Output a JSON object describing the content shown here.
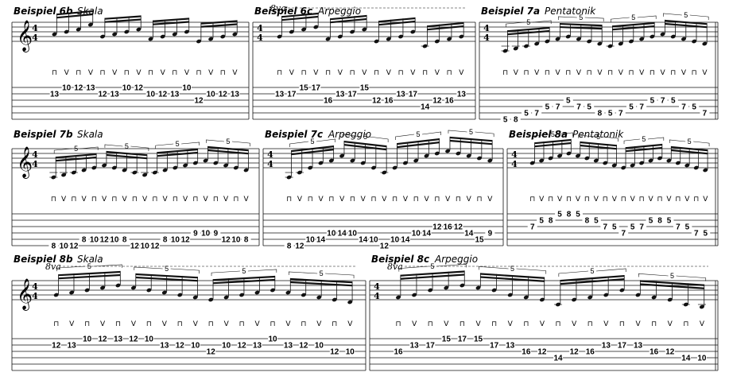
{
  "rows": [
    {
      "systems": [
        {
          "title": "Beispiel 6b",
          "subtitle": "Skala",
          "ottava": "",
          "notes": [
            {
              "s": 2,
              "f": "13",
              "d": -1
            },
            {
              "s": 1,
              "f": "10",
              "d": 0
            },
            {
              "s": 1,
              "f": "12",
              "d": 1
            },
            {
              "s": 1,
              "f": "13",
              "d": 3
            },
            {
              "s": 2,
              "f": "12",
              "d": -2
            },
            {
              "s": 2,
              "f": "13",
              "d": -1
            },
            {
              "s": 1,
              "f": "10",
              "d": 0
            },
            {
              "s": 1,
              "f": "12",
              "d": 1
            },
            {
              "s": 2,
              "f": "10",
              "d": -3
            },
            {
              "s": 2,
              "f": "12",
              "d": -2
            },
            {
              "s": 2,
              "f": "13",
              "d": -1
            },
            {
              "s": 1,
              "f": "10",
              "d": 0
            },
            {
              "s": 3,
              "f": "12",
              "d": -4
            },
            {
              "s": 2,
              "f": "10",
              "d": -3
            },
            {
              "s": 2,
              "f": "12",
              "d": -2
            },
            {
              "s": 2,
              "f": "13",
              "d": -1
            }
          ],
          "strokes": [
            "⊓",
            "V",
            "⊓",
            "V",
            "⊓",
            "V",
            "⊓",
            "V",
            "⊓",
            "V",
            "⊓",
            "V",
            "⊓",
            "V",
            "⊓",
            "V"
          ],
          "tuplets": []
        },
        {
          "title": "Beispiel 6c",
          "subtitle": "Arpeggio",
          "ottava": "8va",
          "notes": [
            {
              "s": 2,
              "f": "13",
              "d": -2
            },
            {
              "s": 2,
              "f": "17",
              "d": 0
            },
            {
              "s": 1,
              "f": "15",
              "d": 1
            },
            {
              "s": 1,
              "f": "17",
              "d": 2
            },
            {
              "s": 3,
              "f": "16",
              "d": -3
            },
            {
              "s": 2,
              "f": "13",
              "d": -2
            },
            {
              "s": 2,
              "f": "17",
              "d": 0
            },
            {
              "s": 1,
              "f": "15",
              "d": 1
            },
            {
              "s": 3,
              "f": "12",
              "d": -4
            },
            {
              "s": 3,
              "f": "16",
              "d": -3
            },
            {
              "s": 2,
              "f": "13",
              "d": -2
            },
            {
              "s": 2,
              "f": "17",
              "d": 0
            },
            {
              "s": 4,
              "f": "14",
              "d": -6
            },
            {
              "s": 3,
              "f": "12",
              "d": -4
            },
            {
              "s": 3,
              "f": "16",
              "d": -3
            },
            {
              "s": 2,
              "f": "13",
              "d": -2
            }
          ],
          "strokes": [
            "⊓",
            "V",
            "⊓",
            "V",
            "⊓",
            "V",
            "⊓",
            "V",
            "⊓",
            "V",
            "⊓",
            "V",
            "⊓",
            "V",
            "⊓",
            "V"
          ],
          "tuplets": []
        },
        {
          "title": "Beispiel 7a",
          "subtitle": "Pentatonik",
          "ottava": "",
          "notes": [
            {
              "s": 6,
              "f": "5",
              "d": -8
            },
            {
              "s": 6,
              "f": "8",
              "d": -7
            },
            {
              "s": 5,
              "f": "5",
              "d": -6
            },
            {
              "s": 5,
              "f": "7",
              "d": -5
            },
            {
              "s": 4,
              "f": "5",
              "d": -4
            },
            {
              "s": 4,
              "f": "7",
              "d": -3
            },
            {
              "s": 3,
              "f": "5",
              "d": -2
            },
            {
              "s": 4,
              "f": "7",
              "d": -3
            },
            {
              "s": 4,
              "f": "5",
              "d": -4
            },
            {
              "s": 5,
              "f": "8",
              "d": -5
            },
            {
              "s": 5,
              "f": "5",
              "d": -6
            },
            {
              "s": 5,
              "f": "7",
              "d": -5
            },
            {
              "s": 4,
              "f": "5",
              "d": -4
            },
            {
              "s": 4,
              "f": "7",
              "d": -3
            },
            {
              "s": 3,
              "f": "5",
              "d": -2
            },
            {
              "s": 3,
              "f": "7",
              "d": -1
            },
            {
              "s": 3,
              "f": "5",
              "d": -2
            },
            {
              "s": 4,
              "f": "7",
              "d": -3
            },
            {
              "s": 4,
              "f": "5",
              "d": -4
            },
            {
              "s": 5,
              "f": "7",
              "d": -5
            }
          ],
          "strokes": [
            "⊓",
            "V",
            "⊓",
            "V",
            "⊓",
            "V",
            "⊓",
            "V",
            "⊓",
            "V",
            "⊓",
            "V",
            "⊓",
            "V",
            "⊓",
            "V",
            "⊓",
            "V",
            "⊓",
            "V"
          ],
          "tuplets": [
            "5",
            "5",
            "5",
            "5"
          ]
        }
      ]
    },
    {
      "systems": [
        {
          "title": "Beispiel 7b",
          "subtitle": "Skala",
          "ottava": "",
          "notes": [
            {
              "s": 6,
              "f": "8",
              "d": -8
            },
            {
              "s": 6,
              "f": "10",
              "d": -7
            },
            {
              "s": 6,
              "f": "12",
              "d": -6
            },
            {
              "s": 5,
              "f": "8",
              "d": -5
            },
            {
              "s": 5,
              "f": "10",
              "d": -4
            },
            {
              "s": 5,
              "f": "12",
              "d": -3
            },
            {
              "s": 5,
              "f": "10",
              "d": -4
            },
            {
              "s": 5,
              "f": "8",
              "d": -5
            },
            {
              "s": 6,
              "f": "12",
              "d": -6
            },
            {
              "s": 6,
              "f": "10",
              "d": -7
            },
            {
              "s": 6,
              "f": "12",
              "d": -6
            },
            {
              "s": 5,
              "f": "8",
              "d": -5
            },
            {
              "s": 5,
              "f": "10",
              "d": -4
            },
            {
              "s": 5,
              "f": "12",
              "d": -3
            },
            {
              "s": 4,
              "f": "9",
              "d": -2
            },
            {
              "s": 4,
              "f": "10",
              "d": -1
            },
            {
              "s": 4,
              "f": "9",
              "d": -2
            },
            {
              "s": 5,
              "f": "12",
              "d": -3
            },
            {
              "s": 5,
              "f": "10",
              "d": -4
            },
            {
              "s": 5,
              "f": "8",
              "d": -5
            }
          ],
          "strokes": [
            "⊓",
            "V",
            "⊓",
            "V",
            "⊓",
            "V",
            "⊓",
            "V",
            "⊓",
            "V",
            "⊓",
            "V",
            "⊓",
            "V",
            "⊓",
            "V",
            "⊓",
            "V",
            "⊓",
            "V"
          ],
          "tuplets": [
            "5",
            "5",
            "5",
            "5"
          ]
        },
        {
          "title": "Beispiel 7c",
          "subtitle": "Arpeggio",
          "ottava": "",
          "notes": [
            {
              "s": 6,
              "f": "8",
              "d": -8
            },
            {
              "s": 6,
              "f": "12",
              "d": -6
            },
            {
              "s": 5,
              "f": "10",
              "d": -4
            },
            {
              "s": 5,
              "f": "14",
              "d": -2
            },
            {
              "s": 4,
              "f": "10",
              "d": -1
            },
            {
              "s": 4,
              "f": "14",
              "d": 1
            },
            {
              "s": 4,
              "f": "10",
              "d": -1
            },
            {
              "s": 5,
              "f": "14",
              "d": -2
            },
            {
              "s": 5,
              "f": "10",
              "d": -4
            },
            {
              "s": 6,
              "f": "12",
              "d": -6
            },
            {
              "s": 5,
              "f": "10",
              "d": -4
            },
            {
              "s": 5,
              "f": "14",
              "d": -2
            },
            {
              "s": 4,
              "f": "10",
              "d": -1
            },
            {
              "s": 4,
              "f": "14",
              "d": 1
            },
            {
              "s": 3,
              "f": "12",
              "d": 2
            },
            {
              "s": 3,
              "f": "16",
              "d": 3
            },
            {
              "s": 3,
              "f": "12",
              "d": 2
            },
            {
              "s": 4,
              "f": "14",
              "d": 1
            },
            {
              "s": 5,
              "f": "15",
              "d": 0
            },
            {
              "s": 4,
              "f": "9",
              "d": -1
            }
          ],
          "strokes": [
            "⊓",
            "V",
            "⊓",
            "V",
            "⊓",
            "V",
            "⊓",
            "V",
            "⊓",
            "V",
            "⊓",
            "V",
            "⊓",
            "V",
            "⊓",
            "V",
            "⊓",
            "V",
            "⊓",
            "V"
          ],
          "tuplets": [
            "5",
            "5",
            "5",
            "5"
          ]
        },
        {
          "title": "Beispiel 8a",
          "subtitle": "Pentatonik",
          "ottava": "",
          "notes": [
            {
              "s": 3,
              "f": "7",
              "d": -2
            },
            {
              "s": 2,
              "f": "5",
              "d": -1
            },
            {
              "s": 2,
              "f": "8",
              "d": 0
            },
            {
              "s": 1,
              "f": "5",
              "d": 1
            },
            {
              "s": 1,
              "f": "8",
              "d": 2
            },
            {
              "s": 1,
              "f": "5",
              "d": 1
            },
            {
              "s": 2,
              "f": "8",
              "d": 0
            },
            {
              "s": 2,
              "f": "5",
              "d": -1
            },
            {
              "s": 3,
              "f": "7",
              "d": -2
            },
            {
              "s": 3,
              "f": "5",
              "d": -3
            },
            {
              "s": 4,
              "f": "7",
              "d": -4
            },
            {
              "s": 3,
              "f": "5",
              "d": -3
            },
            {
              "s": 3,
              "f": "7",
              "d": -2
            },
            {
              "s": 2,
              "f": "5",
              "d": -1
            },
            {
              "s": 2,
              "f": "8",
              "d": 0
            },
            {
              "s": 2,
              "f": "5",
              "d": -1
            },
            {
              "s": 3,
              "f": "7",
              "d": -2
            },
            {
              "s": 3,
              "f": "5",
              "d": -3
            },
            {
              "s": 4,
              "f": "7",
              "d": -4
            },
            {
              "s": 4,
              "f": "5",
              "d": -5
            }
          ],
          "strokes": [
            "⊓",
            "V",
            "⊓",
            "V",
            "⊓",
            "V",
            "⊓",
            "V",
            "⊓",
            "V",
            "⊓",
            "V",
            "⊓",
            "V",
            "⊓",
            "V",
            "⊓",
            "V",
            "⊓",
            "V"
          ],
          "tuplets": [
            "5",
            "5",
            "5",
            "5"
          ]
        }
      ]
    },
    {
      "systems": [
        {
          "title": "Beispiel 8b",
          "subtitle": "Skala",
          "ottava": "8va",
          "notes": [
            {
              "s": 2,
              "f": "12",
              "d": -2
            },
            {
              "s": 2,
              "f": "13",
              "d": -1
            },
            {
              "s": 1,
              "f": "10",
              "d": 0
            },
            {
              "s": 1,
              "f": "12",
              "d": 1
            },
            {
              "s": 1,
              "f": "13",
              "d": 2
            },
            {
              "s": 1,
              "f": "12",
              "d": 1
            },
            {
              "s": 1,
              "f": "10",
              "d": 0
            },
            {
              "s": 2,
              "f": "13",
              "d": -1
            },
            {
              "s": 2,
              "f": "12",
              "d": -2
            },
            {
              "s": 2,
              "f": "10",
              "d": -3
            },
            {
              "s": 3,
              "f": "12",
              "d": -4
            },
            {
              "s": 2,
              "f": "10",
              "d": -3
            },
            {
              "s": 2,
              "f": "12",
              "d": -2
            },
            {
              "s": 2,
              "f": "13",
              "d": -1
            },
            {
              "s": 1,
              "f": "10",
              "d": 0
            },
            {
              "s": 2,
              "f": "13",
              "d": -1
            },
            {
              "s": 2,
              "f": "12",
              "d": -2
            },
            {
              "s": 2,
              "f": "10",
              "d": -3
            },
            {
              "s": 3,
              "f": "12",
              "d": -4
            },
            {
              "s": 3,
              "f": "10",
              "d": -5
            }
          ],
          "strokes": [
            "⊓",
            "V",
            "⊓",
            "V",
            "⊓",
            "V",
            "⊓",
            "V",
            "⊓",
            "V",
            "⊓",
            "V",
            "⊓",
            "V",
            "⊓",
            "V",
            "⊓",
            "V",
            "⊓",
            "V"
          ],
          "tuplets": [
            "5",
            "5",
            "5",
            "5"
          ]
        },
        {
          "title": "Beispiel 8c",
          "subtitle": "Arpeggio",
          "ottava": "8va",
          "notes": [
            {
              "s": 3,
              "f": "16",
              "d": -3
            },
            {
              "s": 2,
              "f": "13",
              "d": -2
            },
            {
              "s": 2,
              "f": "17",
              "d": 0
            },
            {
              "s": 1,
              "f": "15",
              "d": 1
            },
            {
              "s": 1,
              "f": "17",
              "d": 2
            },
            {
              "s": 1,
              "f": "15",
              "d": 1
            },
            {
              "s": 2,
              "f": "17",
              "d": 0
            },
            {
              "s": 2,
              "f": "13",
              "d": -2
            },
            {
              "s": 3,
              "f": "16",
              "d": -3
            },
            {
              "s": 3,
              "f": "12",
              "d": -4
            },
            {
              "s": 4,
              "f": "14",
              "d": -6
            },
            {
              "s": 3,
              "f": "12",
              "d": -4
            },
            {
              "s": 3,
              "f": "16",
              "d": -3
            },
            {
              "s": 2,
              "f": "13",
              "d": -2
            },
            {
              "s": 2,
              "f": "17",
              "d": 0
            },
            {
              "s": 2,
              "f": "13",
              "d": -2
            },
            {
              "s": 3,
              "f": "16",
              "d": -3
            },
            {
              "s": 3,
              "f": "12",
              "d": -4
            },
            {
              "s": 4,
              "f": "14",
              "d": -6
            },
            {
              "s": 4,
              "f": "10",
              "d": -7
            }
          ],
          "strokes": [
            "⊓",
            "V",
            "⊓",
            "V",
            "⊓",
            "V",
            "⊓",
            "V",
            "⊓",
            "V",
            "⊓",
            "V",
            "⊓",
            "V",
            "⊓",
            "V",
            "⊓",
            "V",
            "⊓",
            "V"
          ],
          "tuplets": [
            "5",
            "5",
            "5",
            "5"
          ]
        }
      ]
    }
  ],
  "time_signature": {
    "top": "4",
    "bottom": "4"
  },
  "clef": "treble"
}
